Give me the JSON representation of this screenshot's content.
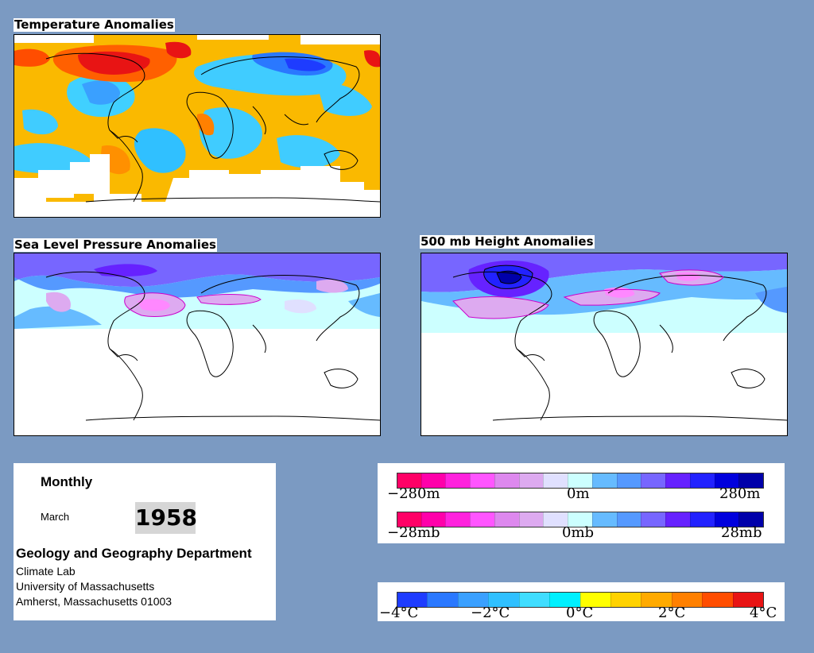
{
  "maps": {
    "temperature": {
      "title": "Temperature Anomalies"
    },
    "slp": {
      "title": "Sea Level Pressure Anomalies"
    },
    "height500": {
      "title": "500 mb Height Anomalies"
    }
  },
  "info": {
    "period": "Monthly",
    "month": "March",
    "year": "1958",
    "department": "Geology and Geography Department",
    "lab": "Climate Lab",
    "university": "University of Massachusetts",
    "address": "Amherst, Massachusetts 01003"
  },
  "legends": {
    "height": {
      "colors": [
        "#ff0066",
        "#ff00aa",
        "#ff22dd",
        "#ff55ff",
        "#dd88ee",
        "#ddaaf0",
        "#e0e0ff",
        "#ccffff",
        "#66bbff",
        "#5599ff",
        "#7766ff",
        "#6622ff",
        "#2222ff",
        "#0000dd",
        "#0000aa"
      ],
      "labels": [
        "−280m",
        "0m",
        "280m"
      ]
    },
    "pressure": {
      "colors": [
        "#ff0066",
        "#ff00aa",
        "#ff22dd",
        "#ff55ff",
        "#dd88ee",
        "#ddaaf0",
        "#e0e0ff",
        "#ccffff",
        "#66bbff",
        "#5599ff",
        "#7766ff",
        "#6622ff",
        "#2222ff",
        "#0000dd",
        "#0000aa"
      ],
      "labels": [
        "−28mb",
        "0mb",
        "28mb"
      ]
    },
    "temperature": {
      "colors": [
        "#1e3cff",
        "#2a78ff",
        "#3aa0ff",
        "#30c0ff",
        "#40ddff",
        "#00f0ff",
        "#ffff00",
        "#ffd200",
        "#ffaa00",
        "#ff8000",
        "#ff4d00",
        "#e81414"
      ],
      "labels": [
        "−4°C",
        "−2°C",
        "0°C",
        "2°C",
        "4°C"
      ]
    }
  }
}
